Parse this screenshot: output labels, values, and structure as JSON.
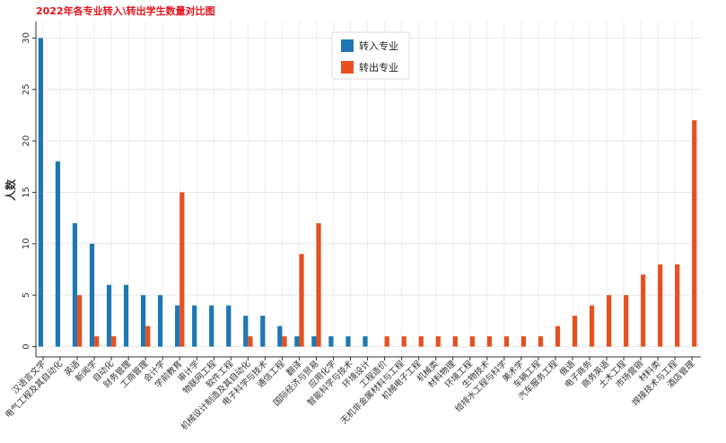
{
  "chart_data": {
    "type": "bar",
    "title": "2022年各专业转入\\转出学生数量对比图",
    "xlabel": "",
    "ylabel": "人数",
    "ylim": [
      -1,
      31.6
    ],
    "yticks": [
      0,
      5,
      10,
      15,
      20,
      25,
      30
    ],
    "grid": true,
    "legend_position": "top-center",
    "colors": {
      "in": "#1f77b4",
      "out": "#e6501e",
      "title": "#e8141c"
    },
    "categories": [
      "汉语言文学",
      "电气工程及其自动化",
      "英语",
      "新闻学",
      "自动化",
      "财务管理",
      "工商管理",
      "会计学",
      "学前教育",
      "审计学",
      "物联网工程",
      "软件工程",
      "机械设计制造及其自动化",
      "电子科学与技术",
      "通信工程",
      "翻译",
      "国际经济与贸易",
      "应用化学",
      "智能科学与技术",
      "环境设计",
      "工程造价",
      "无机非金属材料与工程",
      "机械电子工程",
      "机械类",
      "材料物理",
      "环境工程",
      "生物技术",
      "给排水工程与科学",
      "美术学",
      "车辆工程",
      "汽车服务工程",
      "俄语",
      "电子商务",
      "商务英语",
      "土木工程",
      "市场营销",
      "材料类",
      "焊接技术与工程",
      "酒店管理"
    ],
    "series": [
      {
        "name": "转入专业",
        "values": [
          30,
          18,
          12,
          10,
          6,
          6,
          5,
          5,
          4,
          4,
          4,
          4,
          3,
          3,
          2,
          1,
          1,
          1,
          1,
          1,
          0,
          0,
          0,
          0,
          0,
          0,
          0,
          0,
          0,
          0,
          0,
          0,
          0,
          0,
          0,
          0,
          0,
          0,
          0
        ]
      },
      {
        "name": "转出专业",
        "values": [
          0,
          0,
          5,
          1,
          1,
          0,
          2,
          0,
          15,
          0,
          0,
          0,
          1,
          0,
          1,
          9,
          12,
          0,
          0,
          0,
          1,
          1,
          1,
          1,
          1,
          1,
          1,
          1,
          1,
          1,
          2,
          3,
          4,
          5,
          5,
          7,
          8,
          8,
          22
        ]
      }
    ]
  }
}
